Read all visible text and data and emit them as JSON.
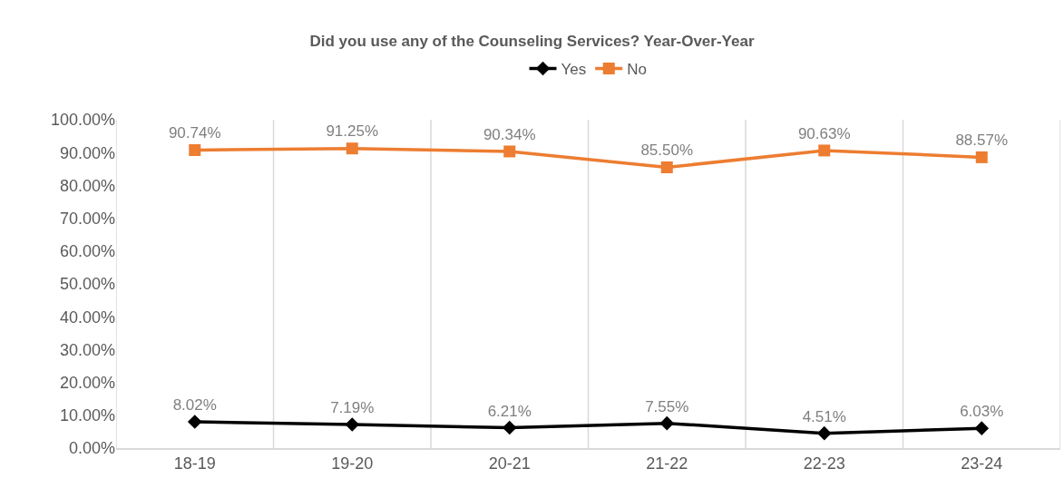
{
  "chart_data": {
    "type": "line",
    "title": "Did you use any of the Counseling Services? Year-Over-Year",
    "categories": [
      "18-19",
      "19-20",
      "20-21",
      "21-22",
      "22-23",
      "23-24"
    ],
    "series": [
      {
        "name": "Yes",
        "color": "#000000",
        "marker": "diamond",
        "values": [
          8.02,
          7.19,
          6.21,
          7.55,
          4.51,
          6.03
        ],
        "value_labels": [
          "8.02%",
          "7.19%",
          "6.21%",
          "7.55%",
          "4.51%",
          "6.03%"
        ]
      },
      {
        "name": "No",
        "color": "#ed7d31",
        "marker": "square",
        "values": [
          90.74,
          91.25,
          90.34,
          85.5,
          90.63,
          88.57
        ],
        "value_labels": [
          "90.74%",
          "91.25%",
          "90.34%",
          "85.50%",
          "90.63%",
          "88.57%"
        ]
      }
    ],
    "ylim": [
      0,
      100
    ],
    "yticks": [
      {
        "value": 0,
        "label": "0.00%"
      },
      {
        "value": 10,
        "label": "10.00%"
      },
      {
        "value": 20,
        "label": "20.00%"
      },
      {
        "value": 30,
        "label": "30.00%"
      },
      {
        "value": 40,
        "label": "40.00%"
      },
      {
        "value": 50,
        "label": "50.00%"
      },
      {
        "value": 60,
        "label": "60.00%"
      },
      {
        "value": 70,
        "label": "70.00%"
      },
      {
        "value": 80,
        "label": "80.00%"
      },
      {
        "value": 90,
        "label": "90.00%"
      },
      {
        "value": 100,
        "label": "100.00%"
      }
    ],
    "grid": "x",
    "legend": "top",
    "line_style": "solid"
  }
}
